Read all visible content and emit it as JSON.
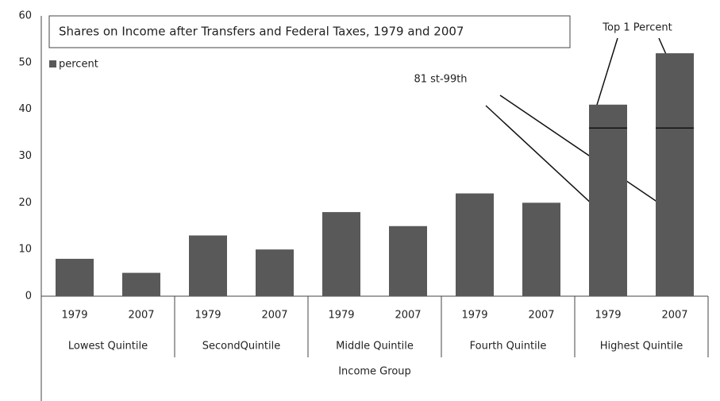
{
  "chart_data": {
    "type": "bar",
    "title": "Shares on Income after Transfers and Federal Taxes, 1979 and 2007",
    "categories": [
      "1979",
      "2007",
      "1979",
      "2007",
      "1979",
      "2007",
      "1979",
      "2007",
      "1979",
      "2007"
    ],
    "groups": [
      "Lowest Quintile",
      "SecondQuintile",
      "Middle Quintile",
      "Fourth Quintile",
      "Highest Quintile"
    ],
    "x_label": "Income Group",
    "series": [
      {
        "name": "percent",
        "color": "#595959",
        "values": [
          8,
          5,
          13,
          10,
          18,
          15,
          22,
          20,
          41,
          52
        ]
      }
    ],
    "divider_values": [
      null,
      null,
      null,
      null,
      null,
      null,
      null,
      null,
      36,
      36
    ],
    "annotations": [
      "Top 1 Percent",
      "81 st-99th"
    ],
    "ylim": [
      0,
      60
    ],
    "yticks": [
      0,
      10,
      20,
      30,
      40,
      50,
      60
    ],
    "grid": false
  }
}
